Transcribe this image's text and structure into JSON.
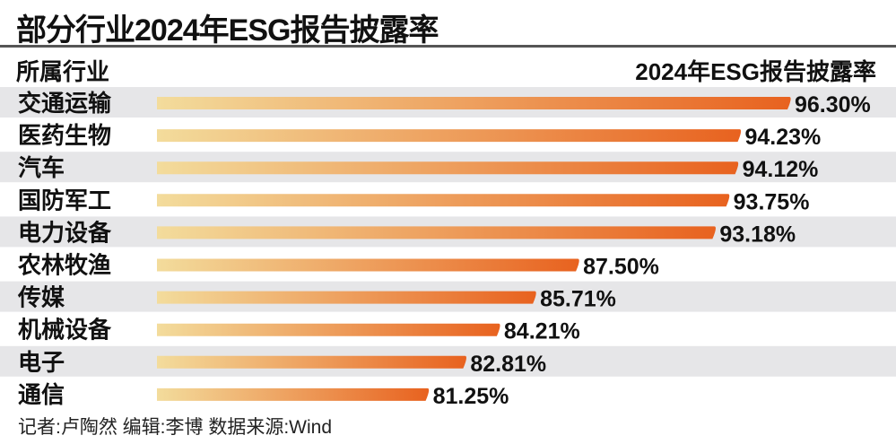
{
  "chart_data": {
    "type": "bar",
    "orientation": "horizontal",
    "title": "部分行业2024年ESG报告披露率",
    "category_header": "所属行业",
    "value_header": "2024年ESG报告披露率",
    "categories": [
      "交通运输",
      "医药生物",
      "汽车",
      "国防军工",
      "电力设备",
      "农林牧渔",
      "传媒",
      "机械设备",
      "电子",
      "通信"
    ],
    "values": [
      96.3,
      94.23,
      94.12,
      93.75,
      93.18,
      87.5,
      85.71,
      84.21,
      82.81,
      81.25
    ],
    "labels": [
      "96.30%",
      "94.23%",
      "94.12%",
      "93.75%",
      "93.18%",
      "87.50%",
      "85.71%",
      "84.21%",
      "82.81%",
      "81.25%"
    ],
    "xlim": [
      70,
      96.3
    ],
    "grid": false,
    "colors": {
      "bar_start": "#f3dc9c",
      "bar_end": "#e8621f",
      "row_shade": "#e6e6e8",
      "rule": "#555555"
    }
  },
  "footer": "记者:卢陶然  编辑:李博  数据来源:Wind"
}
